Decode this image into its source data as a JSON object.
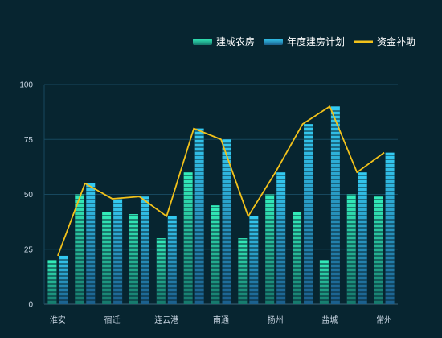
{
  "chart_data": {
    "type": "bar",
    "title": "",
    "xlabel": "",
    "ylabel": "",
    "ylim": [
      0,
      100
    ],
    "yticks": [
      0,
      25,
      50,
      75,
      100
    ],
    "grid": true,
    "legend_position": "top-right",
    "categories": [
      "淮安",
      "宿迁",
      "宿迁",
      "连云港",
      "连云港",
      "南通",
      "南通",
      "扬州",
      "扬州",
      "盐城",
      "盐城",
      "常州",
      "常州"
    ],
    "xtick_labels": [
      "淮安",
      "宿迁",
      "连云港",
      "南通",
      "扬州",
      "盐城",
      "常州"
    ],
    "series": [
      {
        "name": "建成农房",
        "type": "bar",
        "color": "#2ee6b5",
        "values": [
          20,
          50,
          42,
          41,
          30,
          60,
          45,
          30,
          50,
          42,
          20,
          50,
          49
        ]
      },
      {
        "name": "年度建房计划",
        "type": "bar",
        "color": "#2fc3ee",
        "values": [
          22,
          55,
          48,
          49,
          40,
          80,
          75,
          40,
          60,
          82,
          90,
          60,
          69
        ]
      },
      {
        "name": "资金补助",
        "type": "line",
        "color": "#f2c21b",
        "values": [
          22,
          55,
          48,
          49,
          40,
          80,
          75,
          40,
          60,
          82,
          90,
          60,
          69
        ]
      }
    ]
  }
}
